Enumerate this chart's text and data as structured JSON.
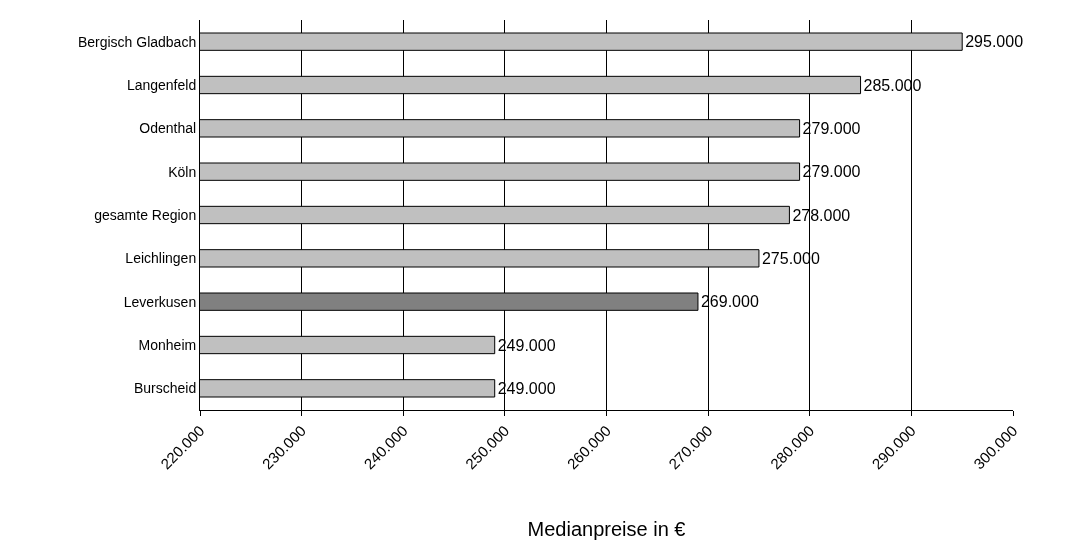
{
  "chart_data": {
    "type": "bar",
    "orientation": "horizontal",
    "xlabel": "Medianpreise in €",
    "categories": [
      "Bergisch Gladbach",
      "Langenfeld",
      "Odenthal",
      "Köln",
      "gesamte Region",
      "Leichlingen",
      "Leverkusen",
      "Monheim",
      "Burscheid"
    ],
    "values": [
      295000,
      285000,
      279000,
      279000,
      278000,
      275000,
      269000,
      249000,
      249000
    ],
    "value_labels": [
      "295.000",
      "285.000",
      "279.000",
      "279.000",
      "278.000",
      "275.000",
      "269.000",
      "249.000",
      "249.000"
    ],
    "colors": [
      "#c0c0c0",
      "#c0c0c0",
      "#c0c0c0",
      "#c0c0c0",
      "#c0c0c0",
      "#c0c0c0",
      "#808080",
      "#c0c0c0",
      "#c0c0c0"
    ],
    "xlim": [
      220000,
      300000
    ],
    "xticks": [
      {
        "value": 220000,
        "label": "220.000"
      },
      {
        "value": 230000,
        "label": "230.000"
      },
      {
        "value": 240000,
        "label": "240.000"
      },
      {
        "value": 250000,
        "label": "250.000"
      },
      {
        "value": 260000,
        "label": "260.000"
      },
      {
        "value": 270000,
        "label": "270.000"
      },
      {
        "value": 280000,
        "label": "280.000"
      },
      {
        "value": 290000,
        "label": "290.000"
      },
      {
        "value": 300000,
        "label": "300.000"
      }
    ],
    "grid": "x",
    "legend": false
  }
}
